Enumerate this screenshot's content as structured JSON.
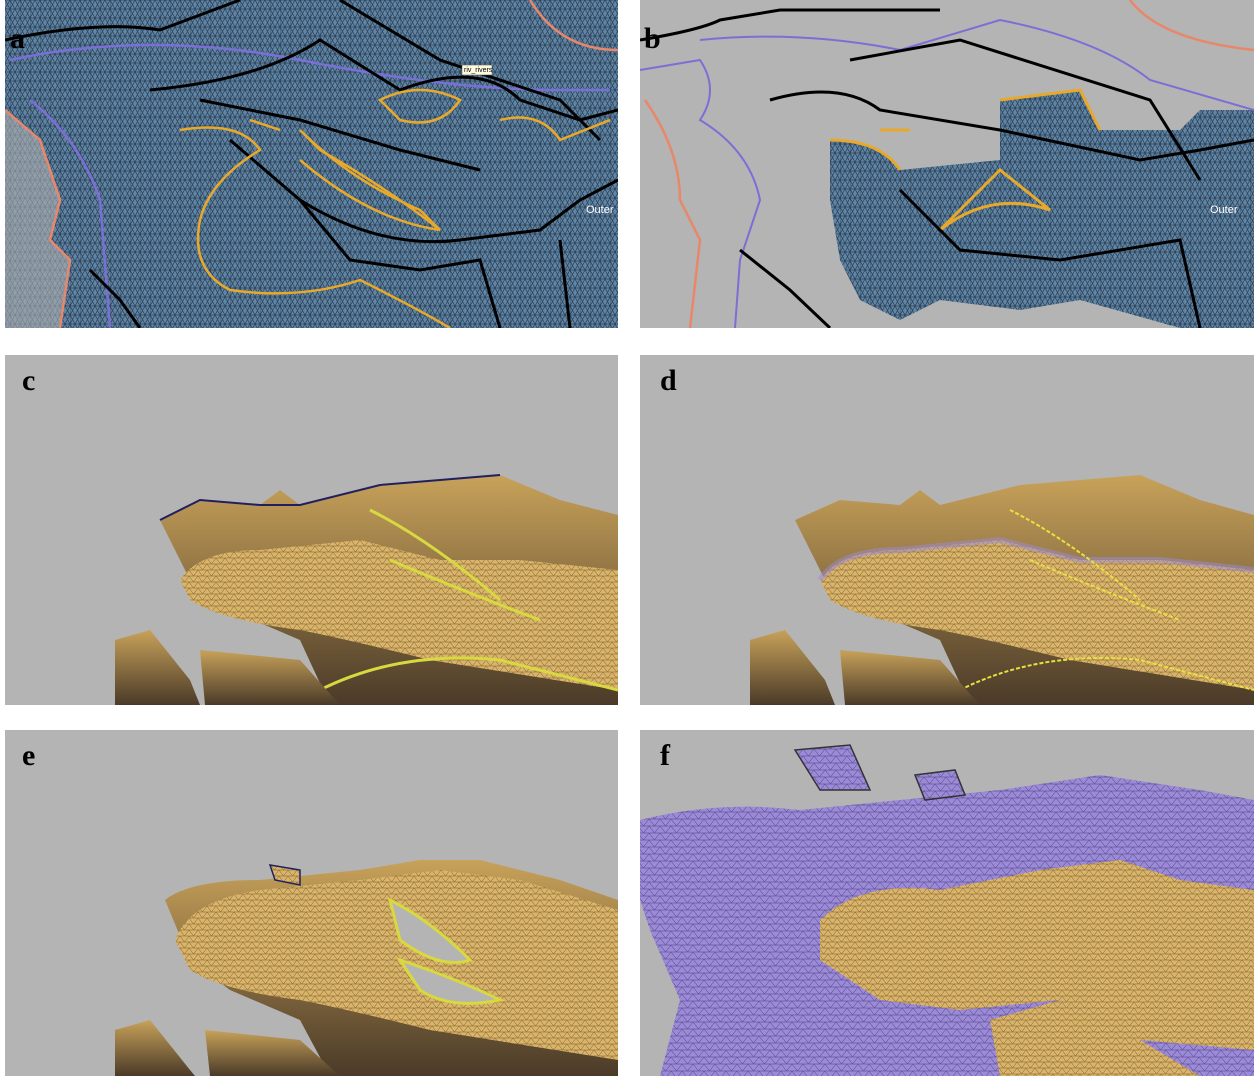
{
  "panels": [
    {
      "label": "a",
      "annotations": [
        "riv_rivers",
        "Outer"
      ]
    },
    {
      "label": "b",
      "annotations": [
        "Outer"
      ]
    },
    {
      "label": "c"
    },
    {
      "label": "d"
    },
    {
      "label": "e"
    },
    {
      "label": "f"
    }
  ]
}
